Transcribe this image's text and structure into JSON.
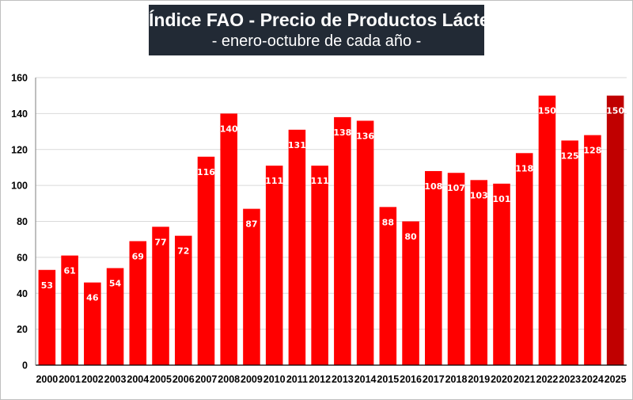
{
  "chart_data": {
    "type": "bar",
    "title": "Índice FAO - Precio de Productos  Lácteos",
    "subtitle": "- enero-octubre de cada año -",
    "xlabel": "",
    "ylabel": "",
    "ylim": [
      0,
      160
    ],
    "yticks": [
      "0",
      "20",
      "40",
      "60",
      "80",
      "100",
      "120",
      "140",
      "160"
    ],
    "grid": true,
    "categories": [
      "2000",
      "2001",
      "2002",
      "2003",
      "2004",
      "2005",
      "2006",
      "2007",
      "2008",
      "2009",
      "2010",
      "2011",
      "2012",
      "2013",
      "2014",
      "2015",
      "2016",
      "2017",
      "2018",
      "2019",
      "2020",
      "2021",
      "2022",
      "2023",
      "2024",
      "2025"
    ],
    "values": [
      53,
      61,
      46,
      54,
      69,
      77,
      72,
      116,
      140,
      87,
      111,
      131,
      111,
      138,
      136,
      88,
      80,
      108,
      107,
      103,
      101,
      118,
      150,
      125,
      128,
      150
    ],
    "labels": [
      "53",
      "61",
      "46",
      "54",
      "69",
      "77",
      "72",
      "116",
      "140",
      "87",
      "111",
      "131",
      "111",
      "138",
      "136",
      "88",
      "80",
      "108",
      "107",
      "103",
      "101",
      "118",
      "150",
      "125",
      "128",
      "150"
    ],
    "colors": {
      "bar": "#ff0000",
      "highlight": "#c00000",
      "grid": "#d9d9d9",
      "axis": "#000000",
      "title_bg": "#222a35"
    },
    "highlight_category": "2025"
  }
}
